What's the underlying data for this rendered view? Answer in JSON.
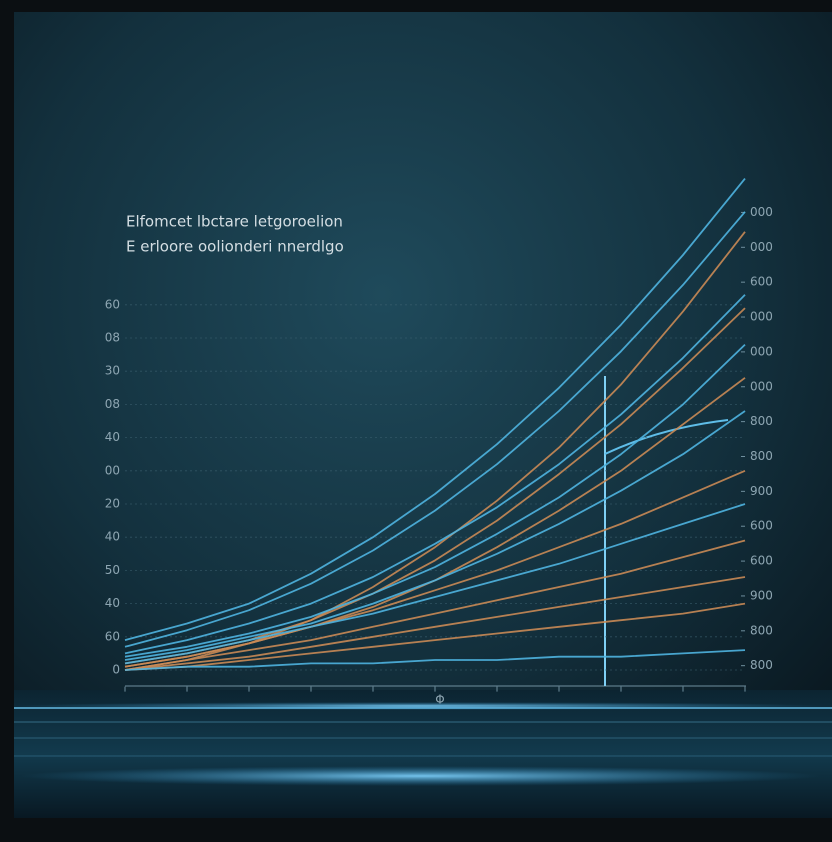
{
  "chart_data": {
    "type": "line",
    "title": "Elfomcet lbctare letgoroelion",
    "subtitle": "E erloore oolionderi nnerdlgo",
    "x_axis_label": "Φ",
    "x": [
      0,
      1,
      2,
      3,
      4,
      5,
      6,
      7,
      8,
      9,
      10
    ],
    "xlim": [
      0,
      10
    ],
    "xticks": [
      0,
      1,
      2,
      3,
      4,
      5,
      6,
      7,
      8,
      9,
      10
    ],
    "ylim": [
      -0.5,
      11.5
    ],
    "yticks": [
      {
        "value": 0,
        "label": "0"
      },
      {
        "value": 1,
        "label": "60"
      },
      {
        "value": 2,
        "label": "40"
      },
      {
        "value": 3,
        "label": "50"
      },
      {
        "value": 4,
        "label": "40"
      },
      {
        "value": 5,
        "label": "20"
      },
      {
        "value": 6,
        "label": "00"
      },
      {
        "value": 7,
        "label": "40"
      },
      {
        "value": 8,
        "label": "08"
      },
      {
        "value": 9,
        "label": "30"
      },
      {
        "value": 10,
        "label": "08"
      },
      {
        "value": 11,
        "label": "60"
      }
    ],
    "y2lim": [
      -0.6,
      13.5
    ],
    "y2ticks": [
      {
        "value": 0,
        "label": "800"
      },
      {
        "value": 1,
        "label": "800"
      },
      {
        "value": 2,
        "label": "900"
      },
      {
        "value": 3,
        "label": "600"
      },
      {
        "value": 4,
        "label": "600"
      },
      {
        "value": 5,
        "label": "900"
      },
      {
        "value": 6,
        "label": "800"
      },
      {
        "value": 7,
        "label": "800"
      },
      {
        "value": 8,
        "label": "000"
      },
      {
        "value": 9,
        "label": "000"
      },
      {
        "value": 10,
        "label": "000"
      },
      {
        "value": 11,
        "label": "600"
      },
      {
        "value": 12,
        "label": "000"
      },
      {
        "value": 13,
        "label": "000"
      }
    ],
    "grid": true,
    "series": [
      {
        "color": "#4fb4e0",
        "values": [
          0.9,
          1.4,
          2.0,
          2.9,
          4.0,
          5.3,
          6.8,
          8.5,
          10.4,
          12.5,
          14.8
        ]
      },
      {
        "color": "#4fb4e0",
        "values": [
          0.7,
          1.2,
          1.8,
          2.6,
          3.6,
          4.8,
          6.2,
          7.8,
          9.6,
          11.6,
          13.8
        ]
      },
      {
        "color": "#c98a55",
        "values": [
          0,
          0.3,
          0.8,
          1.5,
          2.5,
          3.7,
          5.1,
          6.7,
          8.6,
          10.8,
          13.2
        ]
      },
      {
        "color": "#4fb4e0",
        "values": [
          0.5,
          0.9,
          1.4,
          2.0,
          2.8,
          3.8,
          4.9,
          6.2,
          7.7,
          9.4,
          11.3
        ]
      },
      {
        "color": "#c98a55",
        "values": [
          0.2,
          0.5,
          0.9,
          1.5,
          2.3,
          3.3,
          4.5,
          5.9,
          7.4,
          9.1,
          10.9
        ]
      },
      {
        "color": "#4fb4e0",
        "values": [
          0.4,
          0.7,
          1.1,
          1.6,
          2.3,
          3.1,
          4.1,
          5.2,
          6.5,
          8.0,
          9.8
        ]
      },
      {
        "color": "#c98a55",
        "values": [
          0.1,
          0.4,
          0.8,
          1.3,
          1.9,
          2.7,
          3.7,
          4.8,
          6.0,
          7.4,
          8.8
        ]
      },
      {
        "color": "#4fb4e0",
        "values": [
          0.3,
          0.6,
          1.0,
          1.4,
          2.0,
          2.7,
          3.5,
          4.4,
          5.4,
          6.5,
          7.8
        ]
      },
      {
        "color": "#c98a55",
        "values": [
          0.1,
          0.4,
          0.8,
          1.3,
          1.8,
          2.4,
          3.0,
          3.7,
          4.4,
          5.2,
          6.0
        ]
      },
      {
        "color": "#4fb4e0",
        "values": [
          0.2,
          0.5,
          0.9,
          1.3,
          1.7,
          2.2,
          2.7,
          3.2,
          3.8,
          4.4,
          5.0
        ]
      },
      {
        "color": "#c98a55",
        "values": [
          0,
          0.3,
          0.6,
          0.9,
          1.3,
          1.7,
          2.1,
          2.5,
          2.9,
          3.4,
          3.9
        ]
      },
      {
        "color": "#c98a55",
        "values": [
          0,
          0.2,
          0.4,
          0.7,
          1.0,
          1.3,
          1.6,
          1.9,
          2.2,
          2.5,
          2.8
        ]
      },
      {
        "color": "#c98a55",
        "values": [
          0,
          0.1,
          0.3,
          0.5,
          0.7,
          0.9,
          1.1,
          1.3,
          1.5,
          1.7,
          2.0
        ]
      },
      {
        "color": "#4fb4e0",
        "values": [
          0,
          0.1,
          0.1,
          0.2,
          0.2,
          0.3,
          0.3,
          0.4,
          0.4,
          0.5,
          0.6
        ]
      }
    ]
  }
}
